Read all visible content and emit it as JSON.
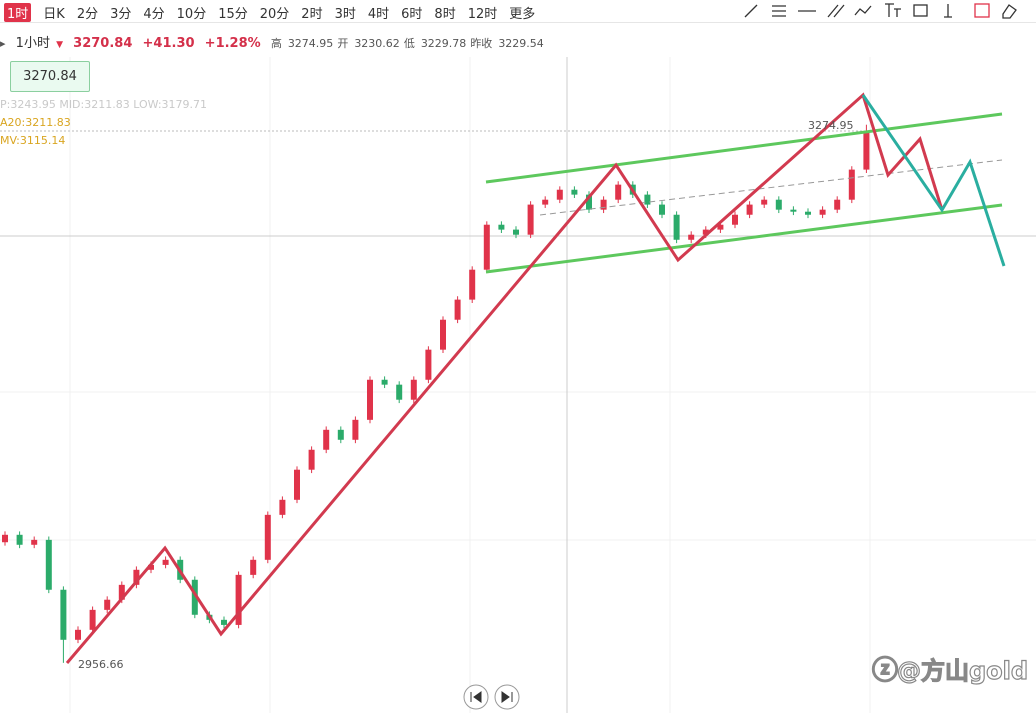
{
  "toolbar": {
    "periods": [
      "1时",
      "日K",
      "2分",
      "3分",
      "4分",
      "10分",
      "15分",
      "20分",
      "2时",
      "3时",
      "4时",
      "6时",
      "8时",
      "12时",
      "更多"
    ],
    "active": 0
  },
  "info": {
    "period": "1小时",
    "price": "3270.84",
    "change": "+41.30",
    "change_pct": "+1.28%",
    "fields": [
      [
        "高",
        "3274.95"
      ],
      [
        "开",
        "3230.62"
      ],
      [
        "低",
        "3229.78"
      ],
      [
        "昨收",
        "3229.54"
      ]
    ]
  },
  "price_box": "3270.84",
  "indicators": [
    "P:3243.95  MID:3211.83  LOW:3179.71",
    "A20:3211.83",
    "MV:3115.14"
  ],
  "annotations": {
    "high": "3274.95",
    "low": "2956.66"
  },
  "watermark": "@方山gold",
  "chart_data": {
    "type": "candlestick",
    "ylim": [
      2927,
      3315
    ],
    "up_color": "#e0334a",
    "down_color": "#2bab6a",
    "open": [
      3028.0,
      3032.4,
      3026.5,
      3029.4,
      2999.9,
      2970.3,
      2976.2,
      2988.0,
      2994.0,
      3002.8,
      3011.7,
      3014.6,
      3017.6,
      3005.8,
      2985.1,
      2982.1,
      2979.1,
      3008.7,
      3017.6,
      3044.2,
      3053.1,
      3070.9,
      3082.7,
      3094.5,
      3088.6,
      3100.4,
      3124.1,
      3121.2,
      3112.3,
      3124.1,
      3141.9,
      3159.6,
      3171.5,
      3189.2,
      3215.8,
      3212.9,
      3209.9,
      3227.7,
      3230.6,
      3236.5,
      3233.6,
      3224.7,
      3230.6,
      3239.5,
      3233.6,
      3227.7,
      3221.7,
      3206.9,
      3209.9,
      3212.9,
      3215.8,
      3221.7,
      3227.7,
      3230.6,
      3224.7,
      3223.5,
      3221.7,
      3224.7,
      3230.6,
      3248.4
    ],
    "high": [
      3034.4,
      3034.4,
      3031.4,
      3031.4,
      3001.9,
      2978.2,
      2990.0,
      2996.0,
      3004.8,
      3013.7,
      3016.6,
      3019.6,
      3019.6,
      3007.8,
      2987.1,
      2984.1,
      3010.7,
      3019.6,
      3046.2,
      3055.1,
      3072.9,
      3084.7,
      3096.5,
      3096.5,
      3102.4,
      3126.1,
      3126.1,
      3123.2,
      3126.1,
      3143.9,
      3161.6,
      3173.5,
      3191.2,
      3217.8,
      3217.8,
      3214.9,
      3229.7,
      3232.6,
      3238.5,
      3238.5,
      3235.6,
      3232.6,
      3241.5,
      3241.5,
      3235.6,
      3229.7,
      3223.7,
      3211.9,
      3214.9,
      3217.8,
      3223.7,
      3229.7,
      3232.6,
      3232.6,
      3226.7,
      3225.5,
      3226.7,
      3232.6,
      3250.4,
      3274.95
    ],
    "low": [
      3026.0,
      3024.5,
      3024.5,
      2997.9,
      2956.66,
      2968.3,
      2974.2,
      2986.0,
      2992.0,
      3000.8,
      3009.7,
      3012.6,
      3003.8,
      2983.1,
      2980.1,
      2977.1,
      2977.1,
      3006.7,
      3015.6,
      3042.2,
      3051.1,
      3068.9,
      3080.7,
      3086.6,
      3086.6,
      3098.4,
      3119.2,
      3110.3,
      3110.3,
      3122.1,
      3139.9,
      3157.6,
      3169.5,
      3187.2,
      3210.9,
      3207.9,
      3207.9,
      3225.7,
      3228.6,
      3231.6,
      3222.7,
      3222.7,
      3228.6,
      3231.6,
      3225.7,
      3219.7,
      3204.9,
      3204.9,
      3207.9,
      3210.9,
      3213.8,
      3219.7,
      3225.7,
      3222.7,
      3221.5,
      3219.7,
      3219.7,
      3222.7,
      3228.6,
      3246.4
    ],
    "close": [
      3032.4,
      3026.5,
      3029.4,
      2999.9,
      2970.3,
      2976.2,
      2988.0,
      2994.0,
      3002.8,
      3011.7,
      3014.6,
      3017.6,
      3005.8,
      2985.1,
      2982.1,
      2979.1,
      3008.7,
      3017.6,
      3044.2,
      3053.1,
      3070.9,
      3082.7,
      3094.5,
      3088.6,
      3100.4,
      3124.1,
      3121.2,
      3112.3,
      3124.1,
      3141.9,
      3159.6,
      3171.5,
      3189.2,
      3215.8,
      3212.9,
      3209.9,
      3227.7,
      3230.6,
      3236.5,
      3233.6,
      3224.7,
      3230.6,
      3239.5,
      3233.6,
      3227.7,
      3221.7,
      3206.9,
      3209.9,
      3212.9,
      3215.8,
      3221.7,
      3227.7,
      3230.6,
      3224.7,
      3223.5,
      3221.7,
      3224.7,
      3230.6,
      3248.4,
      3270.84
    ]
  }
}
